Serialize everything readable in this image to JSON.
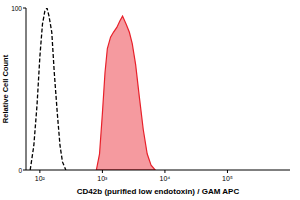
{
  "chart_data": {
    "type": "line",
    "xlabel": "CD42b (purified low endotoxin) / GAM APC",
    "ylabel": "Relative Cell Count",
    "log": "x",
    "xlim": [
      60,
      1000000
    ],
    "xticks": [
      {
        "value": 100,
        "label": "10²"
      },
      {
        "value": 1000,
        "label": "10³"
      },
      {
        "value": 10000,
        "label": "10⁴"
      },
      {
        "value": 100000,
        "label": "10⁵"
      }
    ],
    "ylim": [
      0,
      100
    ],
    "yticks": [
      0,
      100
    ],
    "grid": false,
    "series": [
      {
        "color": "#000000",
        "line_style": "dashed",
        "type": "line",
        "x": [
          70,
          80,
          90,
          100,
          110,
          120,
          130,
          140,
          155,
          170,
          190,
          210,
          230,
          260
        ],
        "values": [
          0,
          15,
          40,
          70,
          90,
          98,
          100,
          95,
          85,
          60,
          35,
          15,
          5,
          0
        ]
      },
      {
        "color": "#e8202a",
        "type": "area",
        "x": [
          800,
          900,
          1000,
          1100,
          1200,
          1350,
          1500,
          1700,
          1900,
          2100,
          2400,
          2700,
          3000,
          3400,
          3900,
          4500,
          5200,
          6000,
          7000
        ],
        "values": [
          0,
          10,
          35,
          60,
          75,
          82,
          85,
          88,
          92,
          95,
          90,
          85,
          78,
          65,
          45,
          25,
          10,
          3,
          0
        ]
      }
    ]
  }
}
